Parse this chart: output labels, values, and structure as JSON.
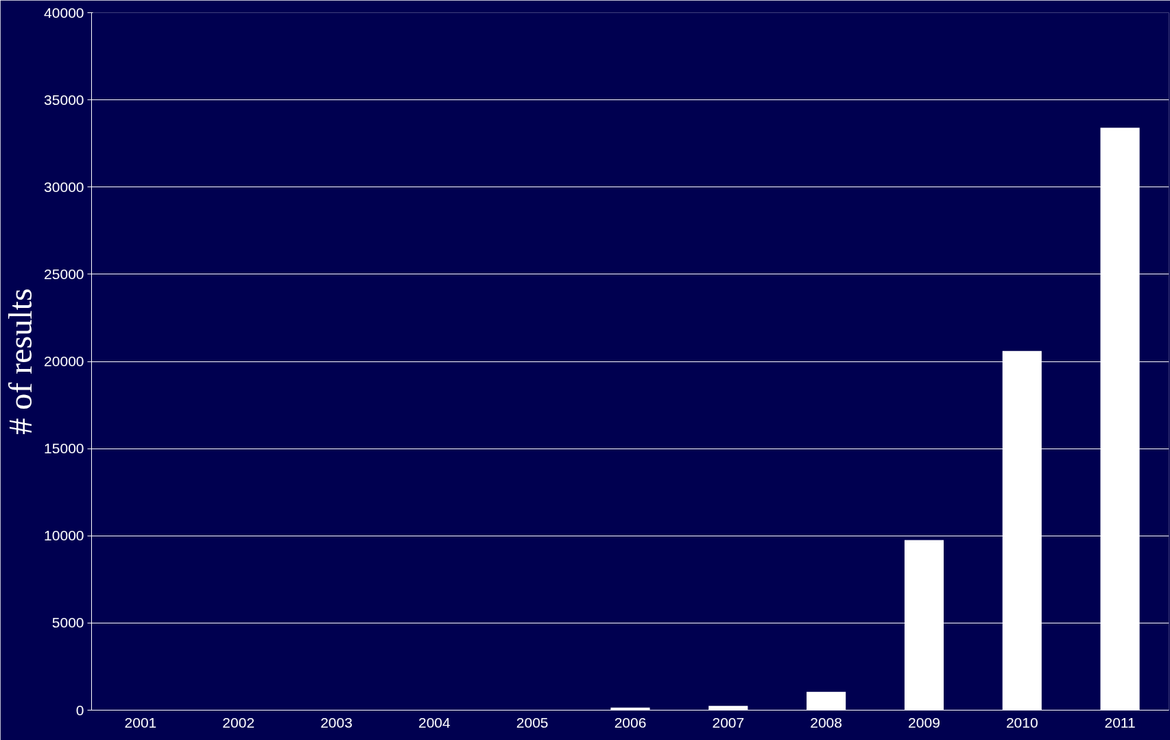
{
  "chart_data": {
    "type": "bar",
    "ylabel": "# of results",
    "categories": [
      "2001",
      "2002",
      "2003",
      "2004",
      "2005",
      "2006",
      "2007",
      "2008",
      "2009",
      "2010",
      "2011"
    ],
    "values": [
      0,
      null,
      0,
      20,
      null,
      150,
      250,
      1050,
      9750,
      20600,
      33400
    ],
    "color": "#ffffff",
    "ylim": [
      0,
      40000
    ],
    "yticks": [
      0,
      5000,
      10000,
      15000,
      20000,
      25000,
      30000,
      35000,
      40000
    ],
    "grid": "y"
  }
}
